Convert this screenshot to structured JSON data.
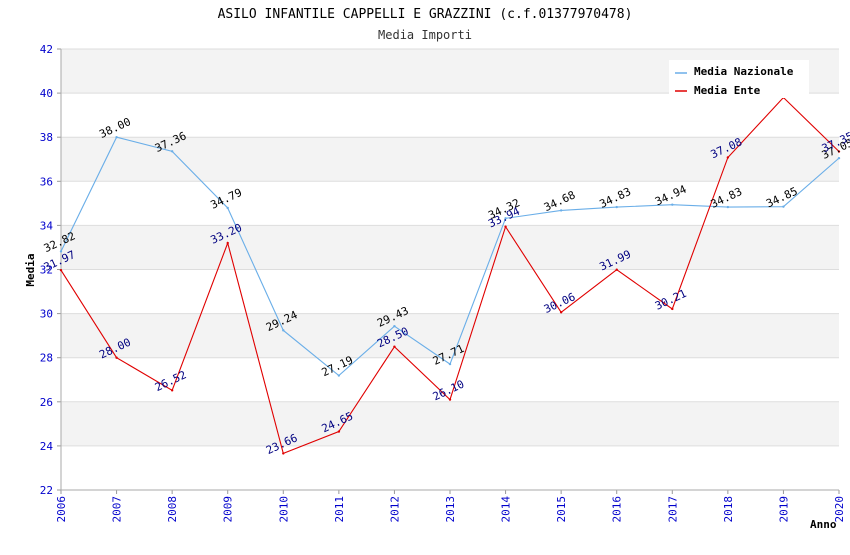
{
  "chart_data": {
    "type": "line",
    "title": "ASILO INFANTILE CAPPELLI E GRAZZINI (c.f.01377970478)",
    "subtitle": "Media Importi",
    "xlabel": "Anno",
    "ylabel": "Media",
    "x": [
      "2006",
      "2007",
      "2008",
      "2009",
      "2010",
      "2011",
      "2012",
      "2013",
      "2014",
      "2015",
      "2016",
      "2017",
      "2018",
      "2019",
      "2020"
    ],
    "ylim": [
      22,
      42
    ],
    "yticks": [
      "22",
      "24",
      "26",
      "28",
      "30",
      "32",
      "34",
      "36",
      "38",
      "40",
      "42"
    ],
    "grid": true,
    "legend_position": "top-right",
    "series": [
      {
        "name": "Media Nazionale",
        "color": "#6aaee8",
        "values": [
          32.82,
          38.0,
          37.36,
          34.79,
          29.24,
          27.19,
          29.43,
          27.71,
          34.32,
          34.68,
          34.83,
          34.94,
          34.83,
          34.85,
          37.05
        ],
        "labels": [
          "32.82",
          "38.00",
          "37.36",
          "34.79",
          "29.24",
          "27.19",
          "29.43",
          "27.71",
          "34.32",
          "34.68",
          "34.83",
          "34.94",
          "34.83",
          "34.85",
          "37.05"
        ]
      },
      {
        "name": "Media Ente",
        "color": "#e00000",
        "values": [
          31.97,
          28.0,
          26.52,
          33.2,
          23.66,
          24.65,
          28.5,
          26.1,
          33.94,
          30.06,
          31.99,
          30.21,
          37.08,
          39.8,
          37.35
        ],
        "labels": [
          "31.97",
          "28.00",
          "26.52",
          "33.20",
          "23.66",
          "24.65",
          "28.50",
          "26.10",
          "33.94",
          "30.06",
          "31.99",
          "30.21",
          "37.08",
          "",
          "37.35"
        ]
      }
    ]
  }
}
